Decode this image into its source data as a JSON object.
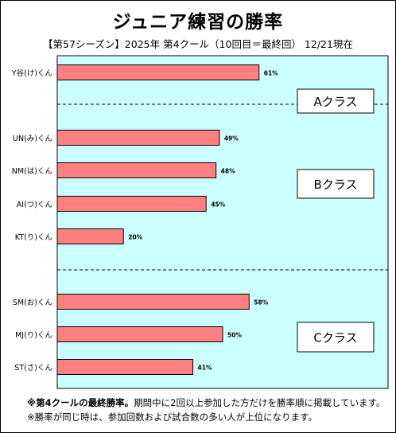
{
  "title": "ジュニア練習の勝率",
  "subtitle": "【第57シーズン】2025年 第4クール（10回目＝最終回） 12/21現在",
  "chart_data": {
    "type": "bar",
    "orientation": "horizontal",
    "categories": [
      "Y谷(け)くん",
      "UN(み)くん",
      "NM(は)くん",
      "AI(つ)くん",
      "KT(り)くん",
      "SM(お)くん",
      "MJ(り)くん",
      "ST(さ)くん"
    ],
    "values": [
      61,
      49,
      48,
      45,
      20,
      58,
      50,
      41
    ],
    "value_labels": [
      "61%",
      "49%",
      "48%",
      "45%",
      "20%",
      "58%",
      "50%",
      "41%"
    ],
    "groups": [
      {
        "label": "Aクラス",
        "members": [
          "Y谷(け)くん"
        ]
      },
      {
        "label": "Bクラス",
        "members": [
          "UN(み)くん",
          "NM(は)くん",
          "AI(つ)くん",
          "KT(り)くん"
        ]
      },
      {
        "label": "Cクラス",
        "members": [
          "SM(お)くん",
          "MJ(り)くん",
          "ST(さ)くん"
        ]
      }
    ],
    "xlim": [
      0,
      100
    ],
    "grid": false,
    "colors": {
      "bar": "#FF8080",
      "plot_bg": "#CCFFFF",
      "separator": "#000000"
    }
  },
  "notes": {
    "line1_bold": "※第4クールの最終勝率。",
    "line1_rest": "期間中に2回以上参加した方だけを勝率順に掲載しています。",
    "line2": "※勝率が同じ時は、参加回数および試合数の多い人が上位になります。"
  }
}
